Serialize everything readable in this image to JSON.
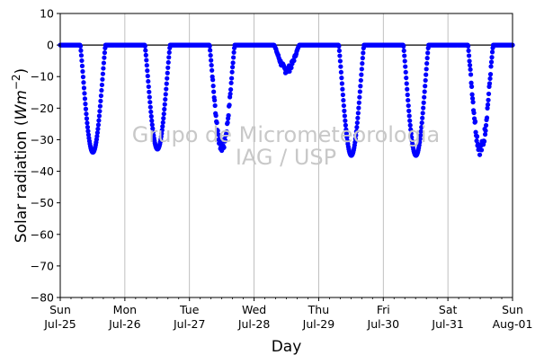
{
  "chart_data": {
    "type": "scatter",
    "xlabel": "Day",
    "ylabel_main": "Solar radiation (",
    "ylabel_italic": "Wm",
    "ylabel_exp": "−2",
    "ylabel_close": ")",
    "ylim": [
      -80,
      10
    ],
    "yticks": [
      10,
      0,
      -10,
      -20,
      -30,
      -40,
      -50,
      -60,
      -70,
      -80
    ],
    "xlim_days": [
      0,
      7
    ],
    "xticks": [
      {
        "day": 0,
        "dow": "Sun",
        "date": "Jul-25"
      },
      {
        "day": 1,
        "dow": "Mon",
        "date": "Jul-26"
      },
      {
        "day": 2,
        "dow": "Tue",
        "date": "Jul-27"
      },
      {
        "day": 3,
        "dow": "Wed",
        "date": "Jul-28"
      },
      {
        "day": 4,
        "dow": "Thu",
        "date": "Jul-29"
      },
      {
        "day": 5,
        "dow": "Fri",
        "date": "Jul-30"
      },
      {
        "day": 6,
        "dow": "Sat",
        "date": "Jul-31"
      },
      {
        "day": 7,
        "dow": "Sun",
        "date": "Aug-01"
      }
    ],
    "vertical_grid": true,
    "zero_line": 0,
    "marker_color": "#0000ff",
    "series": [
      {
        "daily_minima": [
          {
            "date": "Jul-25",
            "min": -34
          },
          {
            "date": "Jul-26",
            "min": -33
          },
          {
            "date": "Jul-27",
            "min": -34
          },
          {
            "date": "Jul-28",
            "min": -9
          },
          {
            "date": "Jul-29",
            "min": -35
          },
          {
            "date": "Jul-30",
            "min": -35
          },
          {
            "date": "Jul-31",
            "min": -35
          }
        ]
      }
    ],
    "watermark": [
      "Grupo de Micrometeorologia",
      "IAG / USP"
    ]
  }
}
